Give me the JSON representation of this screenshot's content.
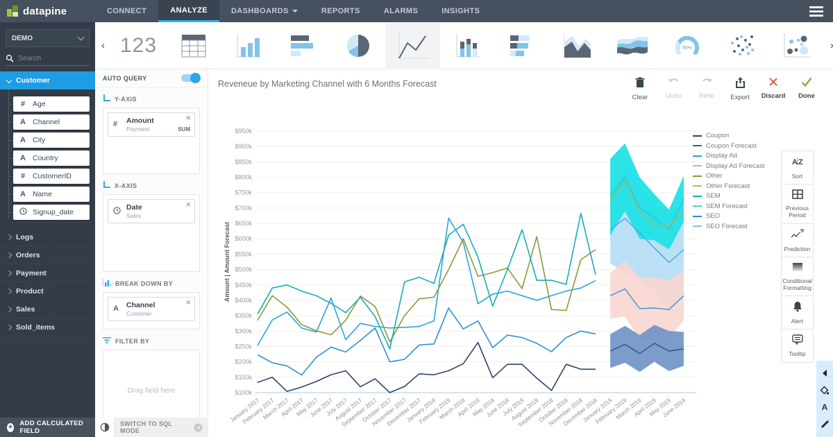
{
  "nav": {
    "brand": "datapine",
    "items": [
      {
        "id": "connect",
        "label": "CONNECT",
        "active": false,
        "dropdown": false
      },
      {
        "id": "analyze",
        "label": "ANALYZE",
        "active": true,
        "dropdown": false
      },
      {
        "id": "dashboards",
        "label": "DASHBOARDS",
        "active": false,
        "dropdown": true
      },
      {
        "id": "reports",
        "label": "REPORTS",
        "active": false,
        "dropdown": false
      },
      {
        "id": "alarms",
        "label": "ALARMS",
        "active": false,
        "dropdown": false
      },
      {
        "id": "insights",
        "label": "INSIGHTS",
        "active": false,
        "dropdown": false
      }
    ]
  },
  "sidebar": {
    "workspace": "DEMO",
    "search_placeholder": "Search",
    "groups": [
      {
        "label": "Customer",
        "expanded": true,
        "fields": [
          {
            "type": "number",
            "label": "Age"
          },
          {
            "type": "text",
            "label": "Channel"
          },
          {
            "type": "text",
            "label": "City"
          },
          {
            "type": "text",
            "label": "Country"
          },
          {
            "type": "number",
            "label": "CustomerID"
          },
          {
            "type": "text",
            "label": "Name"
          },
          {
            "type": "date",
            "label": "Signup_date"
          }
        ]
      },
      {
        "label": "Logs",
        "expanded": false
      },
      {
        "label": "Orders",
        "expanded": false
      },
      {
        "label": "Payment",
        "expanded": false
      },
      {
        "label": "Product",
        "expanded": false
      },
      {
        "label": "Sales",
        "expanded": false
      },
      {
        "label": "Sold_items",
        "expanded": false
      }
    ],
    "add_calculated_field": "ADD CALCULATED FIELD"
  },
  "chart_types": {
    "selected": "line",
    "items": [
      {
        "name": "number",
        "label": "123"
      },
      {
        "name": "table",
        "label": ""
      },
      {
        "name": "column",
        "label": ""
      },
      {
        "name": "bar",
        "label": ""
      },
      {
        "name": "pie",
        "label": ""
      },
      {
        "name": "line",
        "label": ""
      },
      {
        "name": "stacked-column",
        "label": ""
      },
      {
        "name": "stacked-bar",
        "label": ""
      },
      {
        "name": "area",
        "label": ""
      },
      {
        "name": "stream",
        "label": ""
      },
      {
        "name": "gauge",
        "label": "90%"
      },
      {
        "name": "scatter",
        "label": ""
      },
      {
        "name": "bubble",
        "label": ""
      }
    ]
  },
  "query_panel": {
    "auto_query_label": "AUTO QUERY",
    "auto_query_on": true,
    "sections": [
      {
        "id": "y-axis",
        "label": "Y-AXIS",
        "icon": "axis",
        "chips": [
          {
            "icon": "number",
            "title": "Amount",
            "subtitle": "Payment",
            "tag": "SUM"
          }
        ]
      },
      {
        "id": "x-axis",
        "label": "X-AXIS",
        "icon": "axis",
        "chips": [
          {
            "icon": "date",
            "title": "Date",
            "subtitle": "Sales",
            "tag": ""
          }
        ]
      },
      {
        "id": "breakdown",
        "label": "BREAK DOWN BY",
        "icon": "bars",
        "chips": [
          {
            "icon": "text",
            "title": "Channel",
            "subtitle": "Customer",
            "tag": ""
          }
        ]
      },
      {
        "id": "filter",
        "label": "FILTER BY",
        "icon": "filter",
        "chips": [],
        "placeholder": "Drag field here"
      }
    ],
    "sql_mode_label": "SWITCH TO SQL MODE"
  },
  "canvas": {
    "title": "Reveneue by Marketing Channel with 6 Months Forecast",
    "toolbar": [
      {
        "id": "clear",
        "label": "Clear",
        "icon": "trash",
        "disabled": false
      },
      {
        "id": "undo",
        "label": "Undo",
        "icon": "undo",
        "disabled": true
      },
      {
        "id": "redo",
        "label": "Redo",
        "icon": "redo",
        "disabled": true
      },
      {
        "id": "export",
        "label": "Export",
        "icon": "export",
        "disabled": false
      },
      {
        "id": "discard",
        "label": "Discard",
        "icon": "cross",
        "disabled": false
      },
      {
        "id": "done",
        "label": "Done",
        "icon": "check",
        "disabled": false
      }
    ],
    "side_actions": [
      {
        "id": "sort",
        "label": "Sort",
        "icon": "sort"
      },
      {
        "id": "previous-period",
        "label": "Previous Period",
        "icon": "grid"
      },
      {
        "id": "prediction",
        "label": "Prediction",
        "icon": "trend"
      },
      {
        "id": "conditional-formatting",
        "label": "Conditional Formatting",
        "icon": "gradient"
      },
      {
        "id": "alert",
        "label": "Alert",
        "icon": "bell"
      },
      {
        "id": "tooltip",
        "label": "Tooltip",
        "icon": "bubble"
      }
    ]
  },
  "chart_data": {
    "type": "line",
    "title": "Reveneue by Marketing Channel with 6 Months Forecast",
    "xlabel": "",
    "ylabel": "Amount | Amount Forecast",
    "y_unit": "$k",
    "ylim": [
      100,
      950
    ],
    "y_tick_step": 50,
    "y_tick_labels": [
      "$100k",
      "$150k",
      "$200k",
      "$250k",
      "$300k",
      "$350k",
      "$400k",
      "$450k",
      "$500k",
      "$550k",
      "$600k",
      "$650k",
      "$700k",
      "$750k",
      "$800k",
      "$850k",
      "$900k",
      "$950k"
    ],
    "grid": true,
    "legend_position": "right",
    "forecast_start_index": 24,
    "categories": [
      "January 2017",
      "February 2017",
      "March 2017",
      "April 2017",
      "May 2017",
      "June 2017",
      "July 2017",
      "August 2017",
      "September 2017",
      "October 2017",
      "November 2017",
      "December 2017",
      "January 2018",
      "February 2018",
      "March 2018",
      "April 2018",
      "May 2018",
      "June 2018",
      "July 2018",
      "August 2018",
      "September 2018",
      "October 2018",
      "November 2018",
      "December 2018",
      "January 2019",
      "February 2019",
      "March 2019",
      "April 2019",
      "May 2019",
      "June 2019"
    ],
    "series": [
      {
        "name": "Coupon",
        "color": "#2e4369",
        "values": [
          133,
          150,
          104,
          118,
          136,
          158,
          171,
          119,
          145,
          100,
          120,
          161,
          158,
          171,
          194,
          263,
          148,
          192,
          192,
          147,
          107,
          192,
          176,
          176
        ]
      },
      {
        "name": "SEO",
        "color": "#2d8fd5",
        "values": [
          223,
          197,
          187,
          157,
          215,
          248,
          232,
          270,
          310,
          200,
          208,
          255,
          258,
          375,
          307,
          333,
          246,
          287,
          279,
          260,
          233,
          279,
          300,
          291
        ]
      },
      {
        "name": "Display Ad",
        "color": "#29a3e2",
        "values": [
          253,
          336,
          362,
          310,
          297,
          407,
          272,
          325,
          315,
          310,
          312,
          315,
          333,
          667,
          588,
          389,
          420,
          430,
          415,
          400,
          415,
          430,
          440,
          464
        ]
      },
      {
        "name": "Other",
        "color": "#8a9a33",
        "values": [
          335,
          415,
          378,
          321,
          301,
          288,
          335,
          414,
          380,
          265,
          350,
          405,
          410,
          500,
          600,
          478,
          490,
          505,
          438,
          607,
          370,
          367,
          532,
          565
        ]
      },
      {
        "name": "SEM",
        "color": "#14aeb4",
        "values": [
          355,
          440,
          450,
          430,
          415,
          390,
          360,
          410,
          347,
          242,
          460,
          475,
          455,
          612,
          647,
          540,
          381,
          500,
          630,
          465,
          465,
          452,
          683,
          483
        ]
      }
    ],
    "forecast_series": [
      {
        "name": "Display Ad Forecast",
        "line_color": "#49aade",
        "band_color": "#b4ddf4",
        "center": [
          630,
          666,
          620,
          570,
          523,
          565
        ],
        "half_width": [
          110,
          176,
          150,
          140,
          161,
          142
        ]
      },
      {
        "name": "SEM Forecast",
        "line_color": "#1ecdd6",
        "band_color": "#21e1e6",
        "center": [
          735,
          800,
          700,
          670,
          630,
          730
        ],
        "half_width": [
          125,
          110,
          100,
          75,
          65,
          75
        ]
      },
      {
        "name": "SEO Forecast",
        "line_color": "#3d9ad1",
        "band_color": "#f8d6d0",
        "center": [
          415,
          437,
          373,
          375,
          370,
          415
        ],
        "half_width": [
          75,
          90,
          100,
          100,
          95,
          80
        ]
      },
      {
        "name": "Coupon Forecast",
        "line_color": "#31558f",
        "band_color": "#6e92c3",
        "center": [
          235,
          257,
          227,
          260,
          235,
          242
        ],
        "half_width": [
          55,
          60,
          60,
          60,
          65,
          55
        ]
      },
      {
        "name": "Other Forecast",
        "line_color": "#a9b45e",
        "band_color": "none",
        "center": [
          720,
          790,
          690,
          645,
          640,
          695
        ],
        "half_width": [
          0,
          0,
          0,
          0,
          0,
          0
        ]
      }
    ],
    "legend": [
      {
        "name": "Coupon",
        "color": "#2e4369"
      },
      {
        "name": "Coupon Forecast",
        "color": "#3a5c99"
      },
      {
        "name": "Display Ad",
        "color": "#2d9fd8"
      },
      {
        "name": "Display Ad Forecast",
        "color": "#85c6ec"
      },
      {
        "name": "Other",
        "color": "#8a9a33"
      },
      {
        "name": "Other Forecast",
        "color": "#aeb96a"
      },
      {
        "name": "SEM",
        "color": "#14aeb4"
      },
      {
        "name": "SEM Forecast",
        "color": "#3fd9e0"
      },
      {
        "name": "SEO",
        "color": "#2691d9"
      },
      {
        "name": "SEO Forecast",
        "color": "#7cc0ea"
      }
    ]
  },
  "format_strip": [
    "collapse",
    "fill",
    "font",
    "edit"
  ]
}
